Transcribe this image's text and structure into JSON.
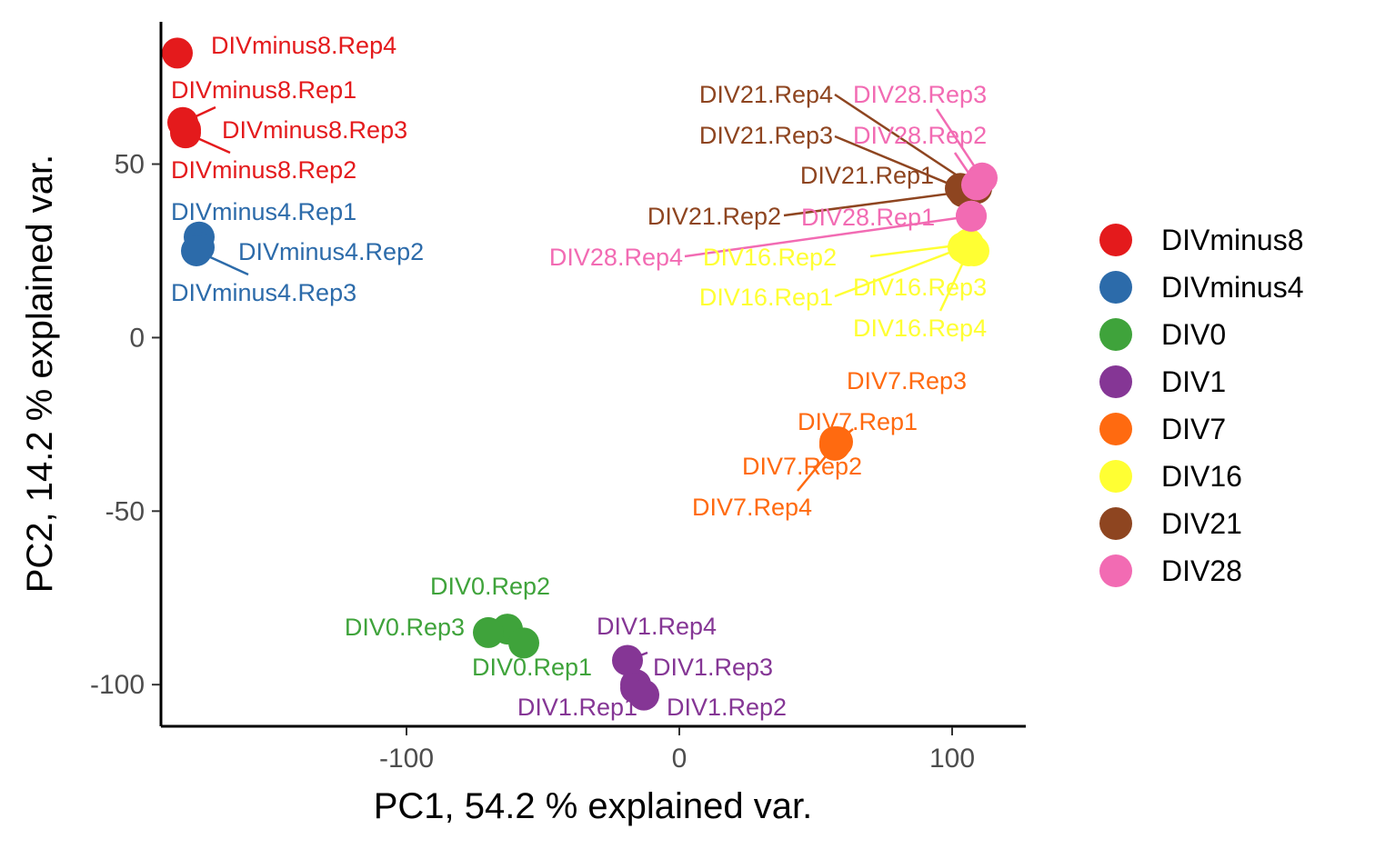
{
  "chart_data": {
    "type": "scatter",
    "xlabel": "PC1, 54.2 % explained var.",
    "ylabel": "PC2, 14.2 % explained var.",
    "xlim": [
      -190,
      127
    ],
    "ylim": [
      -112,
      91
    ],
    "x_ticks": [
      -100,
      0,
      100
    ],
    "x_tick_labels": [
      "-100",
      "0",
      "100"
    ],
    "y_ticks": [
      -100,
      -50,
      0,
      50
    ],
    "y_tick_labels": [
      "-100",
      "-50",
      "0",
      "50"
    ],
    "grid": false,
    "legend_position": "right",
    "series": [
      {
        "name": "DIVminus8",
        "color": "#E41A1C",
        "points": [
          {
            "label": "DIVminus8.Rep4",
            "x": -184,
            "y": 82
          },
          {
            "label": "DIVminus8.Rep1",
            "x": -182,
            "y": 62
          },
          {
            "label": "DIVminus8.Rep3",
            "x": -181,
            "y": 60
          },
          {
            "label": "DIVminus8.Rep2",
            "x": -181,
            "y": 59
          }
        ]
      },
      {
        "name": "DIVminus4",
        "color": "#2C6BAA",
        "points": [
          {
            "label": "DIVminus4.Rep1",
            "x": -176,
            "y": 29
          },
          {
            "label": "DIVminus4.Rep2",
            "x": -176,
            "y": 26
          },
          {
            "label": "DIVminus4.Rep3",
            "x": -177,
            "y": 25
          }
        ]
      },
      {
        "name": "DIV0",
        "color": "#3FA33B",
        "points": [
          {
            "label": "DIV0.Rep2",
            "x": -63,
            "y": -84
          },
          {
            "label": "DIV0.Rep3",
            "x": -70,
            "y": -85
          },
          {
            "label": "DIV0.Rep1",
            "x": -57,
            "y": -88
          }
        ]
      },
      {
        "name": "DIV1",
        "color": "#853695",
        "points": [
          {
            "label": "DIV1.Rep4",
            "x": -19,
            "y": -93
          },
          {
            "label": "DIV1.Rep3",
            "x": -16,
            "y": -100
          },
          {
            "label": "DIV1.Rep1",
            "x": -16,
            "y": -101
          },
          {
            "label": "DIV1.Rep2",
            "x": -13,
            "y": -103
          }
        ]
      },
      {
        "name": "DIV7",
        "color": "#FF6A10",
        "points": [
          {
            "label": "DIV7.Rep3",
            "x": 58,
            "y": -30
          },
          {
            "label": "DIV7.Rep1",
            "x": 57,
            "y": -30
          },
          {
            "label": "DIV7.Rep2",
            "x": 57,
            "y": -31
          },
          {
            "label": "DIV7.Rep4",
            "x": 57,
            "y": -31
          }
        ]
      },
      {
        "name": "DIV16",
        "color": "#FFFF33",
        "points": [
          {
            "label": "DIV16.Rep2",
            "x": 106,
            "y": 27
          },
          {
            "label": "DIV16.Rep1",
            "x": 104,
            "y": 26
          },
          {
            "label": "DIV16.Rep3",
            "x": 108,
            "y": 25
          },
          {
            "label": "DIV16.Rep4",
            "x": 106,
            "y": 25
          }
        ]
      },
      {
        "name": "DIV21",
        "color": "#8E4520",
        "points": [
          {
            "label": "DIV21.Rep4",
            "x": 109,
            "y": 43
          },
          {
            "label": "DIV21.Rep3",
            "x": 106,
            "y": 42
          },
          {
            "label": "DIV21.Rep1",
            "x": 103,
            "y": 43
          },
          {
            "label": "DIV21.Rep2",
            "x": 104,
            "y": 42
          }
        ]
      },
      {
        "name": "DIV28",
        "color": "#F26BB3",
        "points": [
          {
            "label": "DIV28.Rep3",
            "x": 111,
            "y": 46
          },
          {
            "label": "DIV28.Rep2",
            "x": 109,
            "y": 44
          },
          {
            "label": "DIV28.Rep1",
            "x": 107,
            "y": 35
          },
          {
            "label": "DIV28.Rep4",
            "x": 107,
            "y": 35
          }
        ]
      }
    ]
  }
}
